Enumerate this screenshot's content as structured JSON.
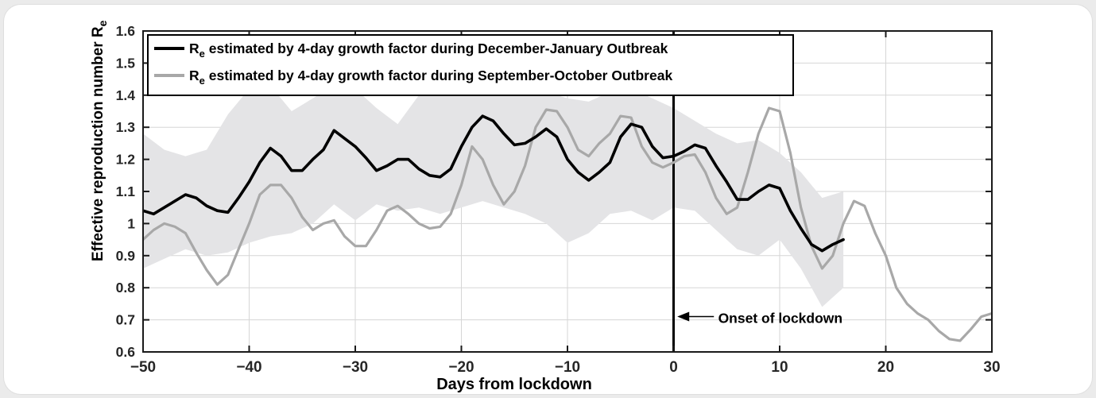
{
  "page": {
    "background": "#ebebeb",
    "card_background": "#ffffff"
  },
  "chart_data": {
    "type": "line",
    "title": "",
    "xlabel": "Days from lockdown",
    "ylabel_main": "Effective reproduction number R",
    "ylabel_sub": "e",
    "xlim": [
      -50,
      30
    ],
    "ylim": [
      0.6,
      1.6
    ],
    "grid": true,
    "x_ticks": [
      -50,
      -40,
      -30,
      -20,
      -10,
      0,
      10,
      20,
      30
    ],
    "x_tick_labels": [
      "−50",
      "−40",
      "−30",
      "−20",
      "−10",
      "0",
      "10",
      "20",
      "30"
    ],
    "y_ticks": [
      0.6,
      0.7,
      0.8,
      0.9,
      1.0,
      1.1,
      1.2,
      1.3,
      1.4,
      1.5,
      1.6
    ],
    "y_tick_labels": [
      "0.6",
      "0.7",
      "0.8",
      "0.9",
      "1",
      "1.1",
      "1.2",
      "1.3",
      "1.4",
      "1.5",
      "1.6"
    ],
    "legend_position": "top-left-inside",
    "colors": {
      "series_dec_jan": "#000000",
      "series_sep_oct": "#a8a8a8",
      "confidence_band": "#e4e4e6",
      "gridline": "#d6d6d6",
      "spine": "#1a1a1a",
      "tick_label": "#262626",
      "legend_border": "#000000",
      "legend_background": "#ffffff",
      "annotation_text": "#000000"
    },
    "series": [
      {
        "name_prefix": "R",
        "name_sub": "e",
        "name_rest": " estimated by 4-day growth factor during December-January Outbreak",
        "color": "#000000",
        "line_width": 3.6,
        "x": [
          -50,
          -49,
          -48,
          -47,
          -46,
          -45,
          -44,
          -43,
          -42,
          -41,
          -40,
          -39,
          -38,
          -37,
          -36,
          -35,
          -34,
          -33,
          -32,
          -31,
          -30,
          -29,
          -28,
          -27,
          -26,
          -25,
          -24,
          -23,
          -22,
          -21,
          -20,
          -19,
          -18,
          -17,
          -16,
          -15,
          -14,
          -13,
          -12,
          -11,
          -10,
          -9,
          -8,
          -7,
          -6,
          -5,
          -4,
          -3,
          -2,
          -1,
          0,
          1,
          2,
          3,
          4,
          5,
          6,
          7,
          8,
          9,
          10,
          11,
          12,
          13,
          14,
          15,
          16
        ],
        "values": [
          1.04,
          1.03,
          1.05,
          1.07,
          1.09,
          1.08,
          1.055,
          1.04,
          1.035,
          1.08,
          1.13,
          1.19,
          1.235,
          1.21,
          1.165,
          1.165,
          1.2,
          1.23,
          1.29,
          1.265,
          1.24,
          1.205,
          1.165,
          1.18,
          1.2,
          1.2,
          1.17,
          1.15,
          1.145,
          1.17,
          1.24,
          1.3,
          1.335,
          1.32,
          1.28,
          1.245,
          1.25,
          1.27,
          1.295,
          1.27,
          1.2,
          1.16,
          1.135,
          1.16,
          1.19,
          1.27,
          1.31,
          1.3,
          1.24,
          1.205,
          1.21,
          1.225,
          1.245,
          1.235,
          1.18,
          1.13,
          1.075,
          1.075,
          1.1,
          1.12,
          1.11,
          1.04,
          0.985,
          0.935,
          0.915,
          0.935,
          0.95
        ]
      },
      {
        "name_prefix": "R",
        "name_sub": "e",
        "name_rest": " estimated by 4-day growth factor during September-October Outbreak",
        "color": "#a8a8a8",
        "line_width": 3.2,
        "x": [
          -50,
          -49,
          -48,
          -47,
          -46,
          -45,
          -44,
          -43,
          -42,
          -41,
          -40,
          -39,
          -38,
          -37,
          -36,
          -35,
          -34,
          -33,
          -32,
          -31,
          -30,
          -29,
          -28,
          -27,
          -26,
          -25,
          -24,
          -23,
          -22,
          -21,
          -20,
          -19,
          -18,
          -17,
          -16,
          -15,
          -14,
          -13,
          -12,
          -11,
          -10,
          -9,
          -8,
          -7,
          -6,
          -5,
          -4,
          -3,
          -2,
          -1,
          0,
          1,
          2,
          3,
          4,
          5,
          6,
          7,
          8,
          9,
          10,
          11,
          12,
          13,
          14,
          15,
          16,
          17,
          18,
          19,
          20,
          21,
          22,
          23,
          24,
          25,
          26,
          27,
          28,
          29,
          30
        ],
        "values": [
          0.95,
          0.98,
          1.0,
          0.99,
          0.97,
          0.91,
          0.855,
          0.81,
          0.84,
          0.92,
          1.0,
          1.09,
          1.12,
          1.12,
          1.08,
          1.02,
          0.98,
          1.0,
          1.01,
          0.96,
          0.93,
          0.93,
          0.98,
          1.04,
          1.055,
          1.03,
          1.0,
          0.985,
          0.99,
          1.03,
          1.12,
          1.24,
          1.2,
          1.12,
          1.06,
          1.1,
          1.18,
          1.3,
          1.355,
          1.35,
          1.3,
          1.23,
          1.21,
          1.25,
          1.28,
          1.335,
          1.33,
          1.24,
          1.19,
          1.175,
          1.19,
          1.21,
          1.215,
          1.16,
          1.08,
          1.03,
          1.05,
          1.16,
          1.28,
          1.36,
          1.35,
          1.22,
          1.05,
          0.93,
          0.86,
          0.9,
          1.0,
          1.07,
          1.055,
          0.97,
          0.9,
          0.8,
          0.75,
          0.72,
          0.7,
          0.665,
          0.64,
          0.635,
          0.67,
          0.71,
          0.72
        ]
      }
    ],
    "band": {
      "name": "confidence-band",
      "x": [
        -50,
        -48,
        -46,
        -44,
        -42,
        -40,
        -38,
        -36,
        -34,
        -32,
        -30,
        -28,
        -26,
        -24,
        -22,
        -20,
        -18,
        -16,
        -14,
        -12,
        -10,
        -8,
        -6,
        -4,
        -2,
        0,
        2,
        4,
        6,
        8,
        10,
        12,
        14,
        16
      ],
      "upper": [
        1.28,
        1.23,
        1.21,
        1.23,
        1.34,
        1.42,
        1.43,
        1.35,
        1.39,
        1.43,
        1.42,
        1.36,
        1.31,
        1.4,
        1.43,
        1.43,
        1.43,
        1.42,
        1.42,
        1.41,
        1.39,
        1.38,
        1.41,
        1.42,
        1.39,
        1.36,
        1.32,
        1.28,
        1.25,
        1.26,
        1.22,
        1.16,
        1.08,
        1.1
      ],
      "lower": [
        0.86,
        0.89,
        0.92,
        0.9,
        0.91,
        0.94,
        0.96,
        0.97,
        1.0,
        1.06,
        1.01,
        1.06,
        1.04,
        1.05,
        1.03,
        1.05,
        1.07,
        1.05,
        1.03,
        1.0,
        0.94,
        0.97,
        1.03,
        1.04,
        1.01,
        1.05,
        1.04,
        0.98,
        0.92,
        0.9,
        0.95,
        0.86,
        0.74,
        0.8
      ]
    },
    "vline": {
      "x": 0,
      "color": "#000000",
      "width": 3
    },
    "annotation": {
      "text": "Onset of lockdown",
      "arrow_tip_x": 0.35,
      "arrow_tail_x": 3.8,
      "arrow_y": 0.71,
      "text_x": 4.2,
      "text_y": 0.705
    }
  }
}
